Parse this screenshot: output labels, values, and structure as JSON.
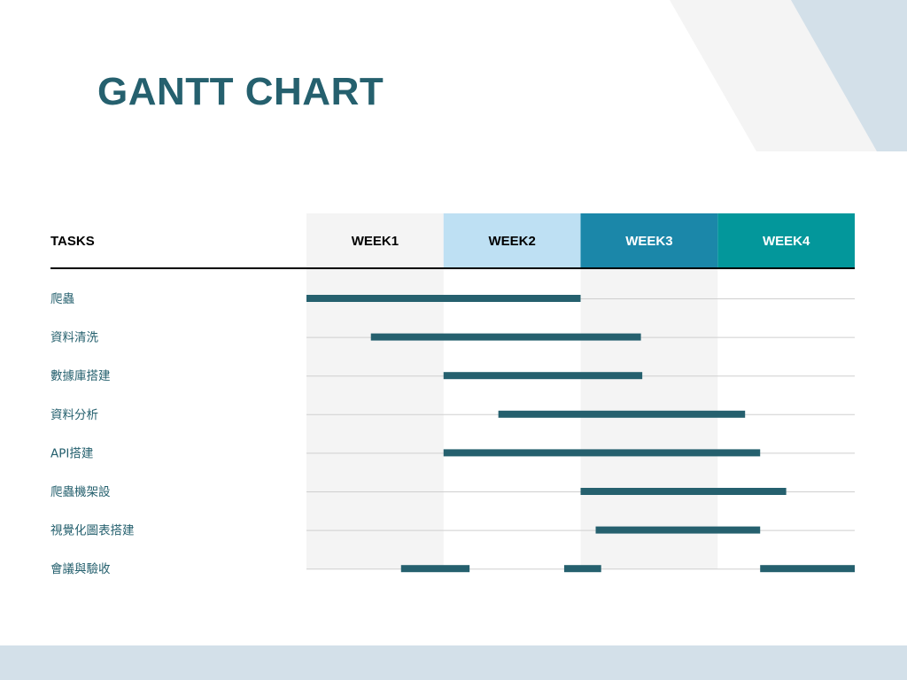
{
  "title": "GANTT CHART",
  "colors": {
    "bar": "#25606e",
    "title": "#25606e",
    "stripe": "#f4f4f4",
    "week_header_bg": [
      "#f4f4f4",
      "#bee0f3",
      "#1b87a9",
      "#03979b"
    ],
    "week_header_text": [
      "#000000",
      "#000000",
      "#ffffff",
      "#ffffff"
    ],
    "decoration": "#d3e0e9"
  },
  "chart_data": {
    "type": "gantt",
    "row_header": "TASKS",
    "columns": [
      "WEEK1",
      "WEEK2",
      "WEEK3",
      "WEEK4"
    ],
    "x_range_weeks": [
      0,
      4
    ],
    "tasks": [
      {
        "label": "爬蟲",
        "segments": [
          [
            0.0,
            2.0
          ]
        ]
      },
      {
        "label": "資料清洗",
        "segments": [
          [
            0.47,
            2.44
          ]
        ]
      },
      {
        "label": "數據庫搭建",
        "segments": [
          [
            1.0,
            2.45
          ]
        ]
      },
      {
        "label": "資料分析",
        "segments": [
          [
            1.4,
            3.2
          ]
        ]
      },
      {
        "label": "API搭建",
        "segments": [
          [
            1.0,
            3.31
          ]
        ]
      },
      {
        "label": "爬蟲機架設",
        "segments": [
          [
            2.0,
            3.5
          ]
        ]
      },
      {
        "label": "視覺化圖表搭建",
        "segments": [
          [
            2.11,
            3.31
          ]
        ]
      },
      {
        "label": "會議與驗收",
        "segments": [
          [
            0.69,
            1.19
          ],
          [
            1.88,
            2.15
          ],
          [
            3.31,
            4.0
          ]
        ]
      }
    ]
  }
}
